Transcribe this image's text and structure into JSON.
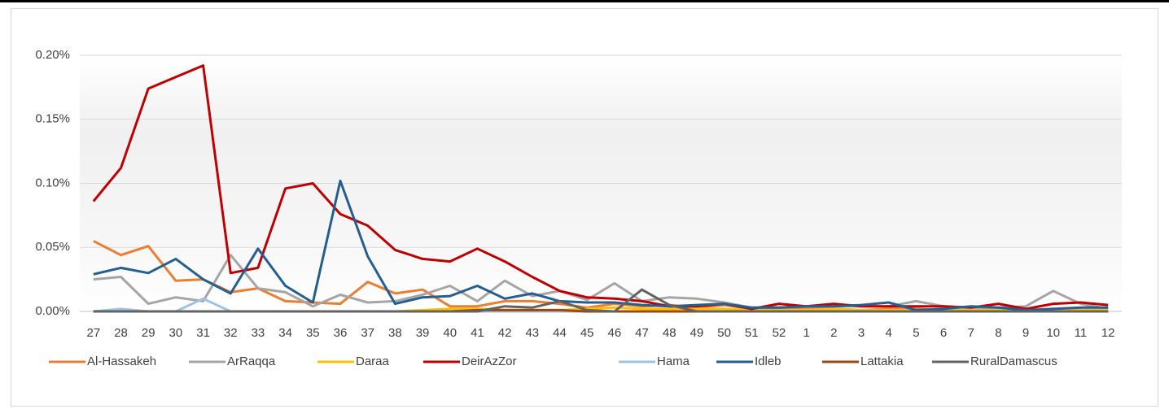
{
  "chart_data": {
    "type": "line",
    "categories": [
      "27",
      "28",
      "29",
      "30",
      "31",
      "32",
      "33",
      "34",
      "35",
      "36",
      "37",
      "38",
      "39",
      "40",
      "41",
      "42",
      "43",
      "44",
      "45",
      "46",
      "47",
      "48",
      "49",
      "50",
      "51",
      "52",
      "1",
      "2",
      "3",
      "4",
      "5",
      "6",
      "7",
      "8",
      "9",
      "10",
      "11",
      "12"
    ],
    "ylim": [
      0,
      0.2
    ],
    "yticks": [
      {
        "value": 0,
        "label": "0.00%"
      },
      {
        "value": 0.05,
        "label": "0.05%"
      },
      {
        "value": 0.1,
        "label": "0.10%"
      },
      {
        "value": 0.15,
        "label": "0.15%"
      },
      {
        "value": 0.2,
        "label": "0.20%"
      }
    ],
    "grid": true,
    "legend": "bottom",
    "series": [
      {
        "name": "Al-Hassakeh",
        "color": "#ed7d31",
        "values": [
          0.055,
          0.044,
          0.051,
          0.024,
          0.025,
          0.015,
          0.018,
          0.008,
          0.007,
          0.006,
          0.023,
          0.014,
          0.017,
          0.004,
          0.004,
          0.008,
          0.008,
          0.006,
          0.003,
          0.006,
          0.004,
          0.005,
          0.003,
          0.005,
          0.002,
          0.002,
          0.003,
          0.002,
          0.001,
          0.002,
          0.002,
          0.001,
          0.001,
          0.002,
          0.001,
          0.002,
          0.001,
          0.001
        ]
      },
      {
        "name": "ArRaqqa",
        "color": "#a5a5a5",
        "values": [
          0.025,
          0.027,
          0.006,
          0.011,
          0.008,
          0.044,
          0.018,
          0.015,
          0.004,
          0.013,
          0.007,
          0.008,
          0.013,
          0.02,
          0.008,
          0.024,
          0.012,
          0.016,
          0.009,
          0.022,
          0.008,
          0.011,
          0.01,
          0.007,
          0.003,
          0.003,
          0.004,
          0.004,
          0.004,
          0.004,
          0.008,
          0.004,
          0.003,
          0.003,
          0.004,
          0.016,
          0.006,
          0.002
        ]
      },
      {
        "name": "Daraa",
        "color": "#ffc000",
        "values": [
          0,
          0,
          0,
          0,
          0,
          0,
          0,
          0,
          0,
          0,
          0,
          0,
          0.001,
          0.002,
          0.002,
          0.001,
          0.001,
          0.001,
          0.002,
          0.003,
          0.002,
          0.002,
          0.002,
          0.002,
          0.001,
          0.001,
          0.001,
          0.002,
          0.001,
          0.001,
          0.001,
          0.001,
          0.001,
          0.001,
          0.001,
          0.001,
          0.001,
          0.001
        ]
      },
      {
        "name": "DeirAzZor",
        "color": "#c00000",
        "values": [
          0.086,
          0.112,
          0.174,
          0.183,
          0.192,
          0.03,
          0.034,
          0.096,
          0.1,
          0.076,
          0.067,
          0.048,
          0.041,
          0.039,
          0.049,
          0.039,
          0.027,
          0.016,
          0.011,
          0.01,
          0.008,
          0.004,
          0.004,
          0.006,
          0.002,
          0.006,
          0.004,
          0.006,
          0.004,
          0.004,
          0.004,
          0.004,
          0.003,
          0.006,
          0.002,
          0.006,
          0.007,
          0.005
        ]
      },
      {
        "name": "Hama",
        "color": "#9dc3e6",
        "values": [
          0,
          0.002,
          0,
          0,
          0.01,
          0,
          0,
          0,
          0,
          0,
          0,
          0,
          0,
          0,
          0,
          0,
          0,
          0,
          0,
          0,
          0,
          0,
          0,
          0,
          0,
          0,
          0,
          0,
          0,
          0,
          0,
          0,
          0,
          0,
          0,
          0,
          0,
          0
        ]
      },
      {
        "name": "Idleb",
        "color": "#255e91",
        "values": [
          0.029,
          0.034,
          0.03,
          0.041,
          0.025,
          0.014,
          0.049,
          0.02,
          0.007,
          0.102,
          0.043,
          0.006,
          0.011,
          0.012,
          0.02,
          0.01,
          0.014,
          0.008,
          0.007,
          0.007,
          0.005,
          0.004,
          0.005,
          0.006,
          0.003,
          0.003,
          0.004,
          0.004,
          0.005,
          0.007,
          0.001,
          0.002,
          0.004,
          0.003,
          0.001,
          0.002,
          0.003,
          0.003
        ]
      },
      {
        "name": "Lattakia",
        "color": "#9e480e",
        "values": [
          0,
          0,
          0,
          0,
          0,
          0,
          0,
          0,
          0,
          0,
          0,
          0,
          0,
          0,
          0.001,
          0.001,
          0.001,
          0.001,
          0,
          0,
          0,
          0,
          0,
          0,
          0,
          0,
          0,
          0,
          0,
          0,
          0,
          0,
          0,
          0,
          0,
          0,
          0,
          0
        ]
      },
      {
        "name": "RuralDamascus",
        "color": "#636363",
        "values": [
          0,
          0,
          0,
          0,
          0,
          0,
          0,
          0,
          0,
          0,
          0,
          0,
          0,
          0,
          0,
          0.004,
          0.003,
          0.008,
          0.001,
          0,
          0.017,
          0.005,
          0,
          0,
          0,
          0,
          0,
          0,
          0,
          0,
          0,
          0,
          0,
          0,
          0,
          0,
          0,
          0
        ]
      }
    ]
  }
}
